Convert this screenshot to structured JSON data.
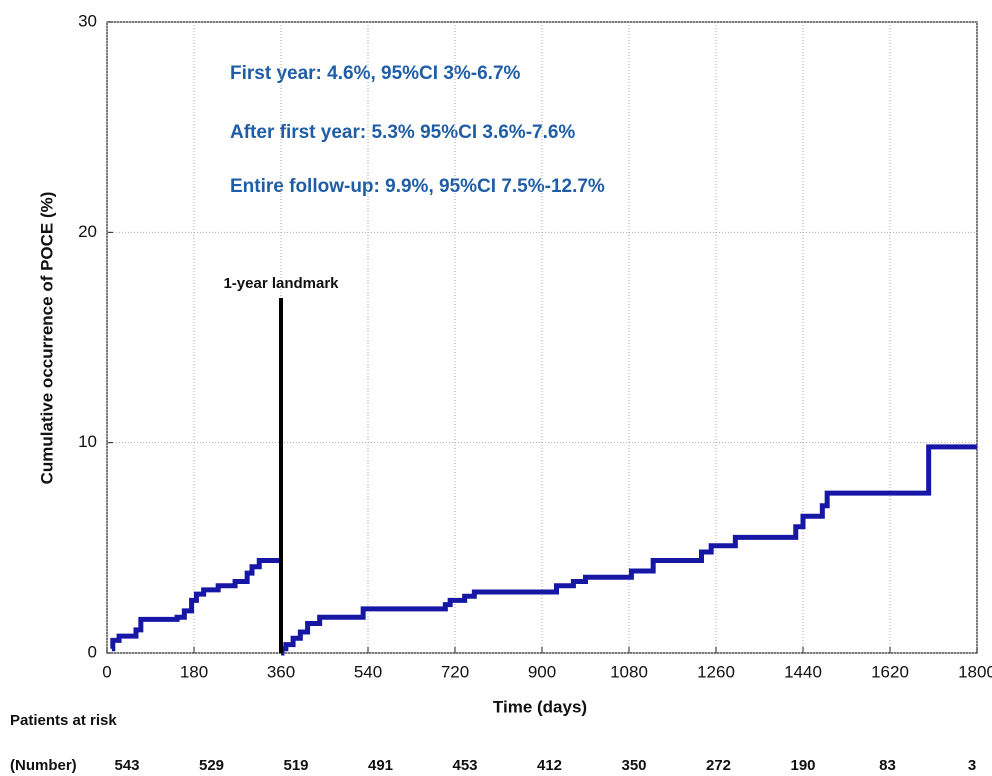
{
  "chart_data": {
    "type": "step",
    "xlabel": "Time (days)",
    "ylabel": "Cumulative occurrence of POCE (%)",
    "xlim": [
      0,
      1800
    ],
    "ylim": [
      0,
      30
    ],
    "xticks": [
      0,
      180,
      360,
      540,
      720,
      900,
      1080,
      1260,
      1440,
      1620,
      1800
    ],
    "yticks": [
      0,
      10,
      20,
      30
    ],
    "grid": true,
    "annotations": [
      "First year: 4.6%, 95%CI 3%-6.7%",
      "After first year: 5.3% 95%CI 3.6%-7.6%",
      "Entire follow-up: 9.9%, 95%CI 7.5%-12.7%"
    ],
    "landmark": {
      "x": 360,
      "label": "1-year landmark"
    },
    "series": [
      {
        "color": "#1717a6",
        "x": [
          10,
          12,
          25,
          60,
          70,
          145,
          160,
          175,
          185,
          200,
          230,
          265,
          290,
          300,
          315,
          360
        ],
        "values": [
          0.2,
          0.6,
          0.8,
          1.1,
          1.6,
          1.7,
          2.0,
          2.5,
          2.8,
          3.0,
          3.2,
          3.4,
          3.8,
          4.1,
          4.4,
          4.4
        ]
      },
      {
        "color": "#1717a6",
        "x": [
          360,
          362,
          370,
          385,
          400,
          415,
          440,
          530,
          700,
          710,
          740,
          760,
          930,
          965,
          990,
          1085,
          1130,
          1230,
          1250,
          1300,
          1425,
          1440,
          1480,
          1490,
          1700,
          1800
        ],
        "values": [
          0,
          0.2,
          0.4,
          0.7,
          1.0,
          1.4,
          1.7,
          2.1,
          2.3,
          2.5,
          2.7,
          2.9,
          3.2,
          3.4,
          3.6,
          3.9,
          4.4,
          4.8,
          5.1,
          5.5,
          6.0,
          6.5,
          7.0,
          7.6,
          9.8,
          9.8
        ]
      }
    ],
    "risk_table": {
      "title": "Patients at risk",
      "label": "(Number)",
      "values": [
        543,
        529,
        519,
        491,
        453,
        412,
        350,
        272,
        190,
        83,
        3
      ]
    }
  }
}
